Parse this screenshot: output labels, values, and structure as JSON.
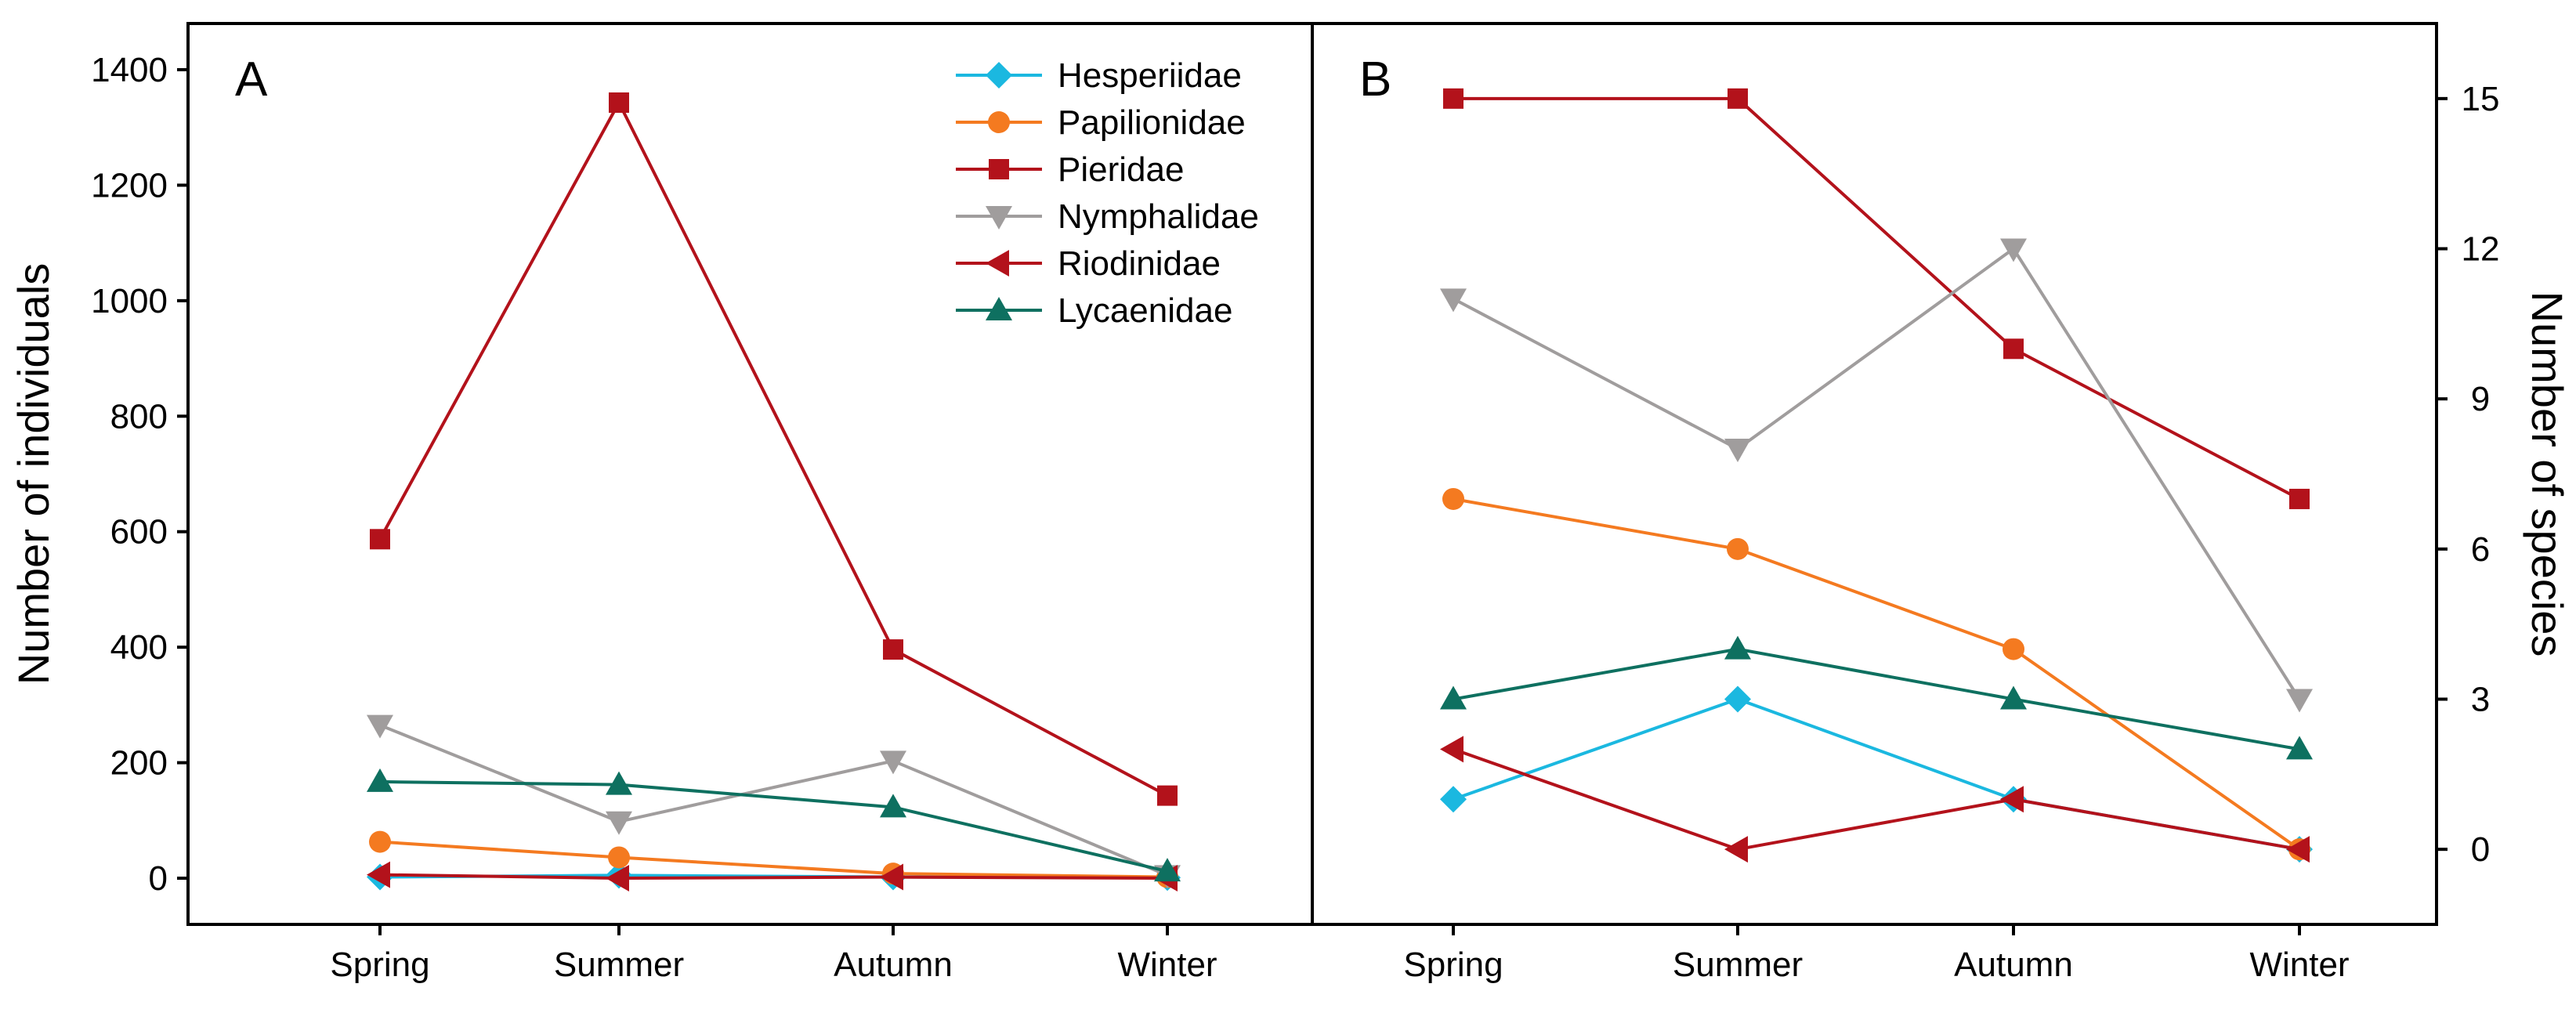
{
  "chart_data": [
    {
      "type": "line",
      "panel_label": "A",
      "categories": [
        "Spring",
        "Summer",
        "Autumn",
        "Winter"
      ],
      "ylabel": "Number of individuals",
      "ylim": [
        -80,
        1480
      ],
      "yticks": [
        0,
        200,
        400,
        600,
        800,
        1000,
        1200,
        1400
      ],
      "series": [
        {
          "name": "Hesperiidae",
          "color": "#1bb8e0",
          "marker": "diamond",
          "values": [
            2,
            5,
            2,
            1
          ]
        },
        {
          "name": "Papilionidae",
          "color": "#f47a20",
          "marker": "circle",
          "values": [
            63,
            36,
            8,
            2
          ]
        },
        {
          "name": "Pieridae",
          "color": "#b3121b",
          "marker": "square",
          "values": [
            587,
            1343,
            396,
            143
          ]
        },
        {
          "name": "Nymphalidae",
          "color": "#a09d9d",
          "marker": "triangle-down",
          "values": [
            265,
            98,
            203,
            5
          ]
        },
        {
          "name": "Riodinidae",
          "color": "#b3121b",
          "marker": "triangle-left",
          "values": [
            6,
            0,
            2,
            0
          ]
        },
        {
          "name": "Lycaenidae",
          "color": "#0e7060",
          "marker": "triangle-up",
          "values": [
            167,
            162,
            123,
            12
          ]
        }
      ]
    },
    {
      "type": "line",
      "panel_label": "B",
      "categories": [
        "Spring",
        "Summer",
        "Autumn",
        "Winter"
      ],
      "ylabel": "Number of species",
      "ylim": [
        -1.5,
        16.5
      ],
      "yticks": [
        0,
        3,
        6,
        9,
        12,
        15
      ],
      "series": [
        {
          "name": "Hesperiidae",
          "color": "#1bb8e0",
          "marker": "diamond",
          "values": [
            1,
            3,
            1,
            0
          ]
        },
        {
          "name": "Papilionidae",
          "color": "#f47a20",
          "marker": "circle",
          "values": [
            7,
            6,
            4,
            0
          ]
        },
        {
          "name": "Pieridae",
          "color": "#b3121b",
          "marker": "square",
          "values": [
            15,
            15,
            10,
            7
          ]
        },
        {
          "name": "Nymphalidae",
          "color": "#a09d9d",
          "marker": "triangle-down",
          "values": [
            11,
            8,
            12,
            3
          ]
        },
        {
          "name": "Riodinidae",
          "color": "#b3121b",
          "marker": "triangle-left",
          "values": [
            2,
            0,
            1,
            0
          ]
        },
        {
          "name": "Lycaenidae",
          "color": "#0e7060",
          "marker": "triangle-up",
          "values": [
            3,
            4,
            3,
            2
          ]
        }
      ]
    }
  ]
}
